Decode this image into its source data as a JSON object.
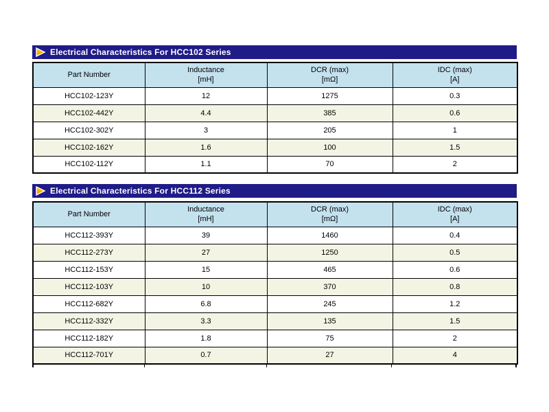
{
  "page": {
    "background": "#ffffff"
  },
  "theme": {
    "title_bar_bg": "#1f1b87",
    "title_text_color": "#ffffff",
    "header_cell_bg": "#c4e1ee",
    "row_bg": "#ffffff",
    "alt_row_bg": "#f4f4e4",
    "border_color": "#000000",
    "marker_yellow": "#ffd400",
    "marker_orange": "#f28900"
  },
  "icons": {
    "section_marker": "play-triangle-icon"
  },
  "sections": [
    {
      "title": "Electrical Characteristics For HCC102 Series",
      "columns": [
        [
          "Part Number"
        ],
        [
          "Inductance",
          "[mH]"
        ],
        [
          "DCR (max)",
          "[mΩ]"
        ],
        [
          "IDC (max)",
          "[A]"
        ]
      ],
      "rows": [
        [
          "HCC102-123Y",
          "12",
          "1275",
          "0.3"
        ],
        [
          "HCC102-442Y",
          "4.4",
          "385",
          "0.6"
        ],
        [
          "HCC102-302Y",
          "3",
          "205",
          "1"
        ],
        [
          "HCC102-162Y",
          "1.6",
          "100",
          "1.5"
        ],
        [
          "HCC102-112Y",
          "1.1",
          "70",
          "2"
        ]
      ]
    },
    {
      "title": "Electrical Characteristics For HCC112 Series",
      "columns": [
        [
          "Part Number"
        ],
        [
          "Inductance",
          "[mH]"
        ],
        [
          "DCR (max)",
          "[mΩ]"
        ],
        [
          "IDC (max)",
          "[A]"
        ]
      ],
      "rows": [
        [
          "HCC112-393Y",
          "39",
          "1460",
          "0.4"
        ],
        [
          "HCC112-273Y",
          "27",
          "1250",
          "0.5"
        ],
        [
          "HCC112-153Y",
          "15",
          "465",
          "0.6"
        ],
        [
          "HCC112-103Y",
          "10",
          "370",
          "0.8"
        ],
        [
          "HCC112-682Y",
          "6.8",
          "245",
          "1.2"
        ],
        [
          "HCC112-332Y",
          "3.3",
          "135",
          "1.5"
        ],
        [
          "HCC112-182Y",
          "1.8",
          "75",
          "2"
        ],
        [
          "HCC112-701Y",
          "0.7",
          "27",
          "4"
        ]
      ]
    }
  ]
}
